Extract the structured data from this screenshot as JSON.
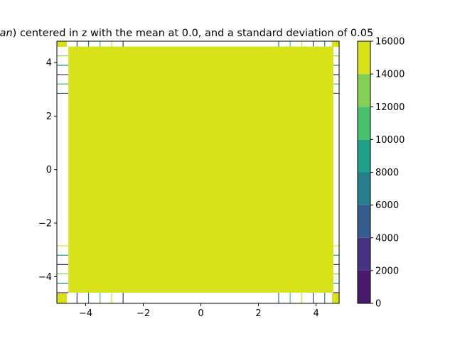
{
  "chart_data": {
    "type": "contourf",
    "title_italic": "sian",
    "title_text": ") centered in z with the mean at 0.0, and a standard deviation of 0.05",
    "xlabel": "",
    "ylabel": "",
    "xlim": [
      -5.0,
      4.8
    ],
    "ylim": [
      -5.0,
      4.8
    ],
    "x_ticks": [
      -4,
      -2,
      0,
      2,
      4
    ],
    "x_tick_labels": [
      "−4",
      "−2",
      "0",
      "2",
      "4"
    ],
    "y_ticks": [
      -4,
      -2,
      0,
      2,
      4
    ],
    "y_tick_labels": [
      "−4",
      "−2",
      "0",
      "2",
      "4"
    ],
    "dominant_region": {
      "xmin": -4.6,
      "xmax": 4.6,
      "ymin": -4.6,
      "ymax": 4.6,
      "level_range": [
        14000,
        16000
      ]
    },
    "colorbar": {
      "levels": [
        0,
        2000,
        4000,
        6000,
        8000,
        10000,
        12000,
        14000,
        16000
      ],
      "tick_labels": [
        "0",
        "2000",
        "4000",
        "6000",
        "8000",
        "10000",
        "12000",
        "14000",
        "16000"
      ],
      "colors": [
        "#481a6c",
        "#46327e",
        "#365c8d",
        "#277f8e",
        "#1fa187",
        "#4ac16d",
        "#84cf55",
        "#d8e219"
      ]
    }
  }
}
